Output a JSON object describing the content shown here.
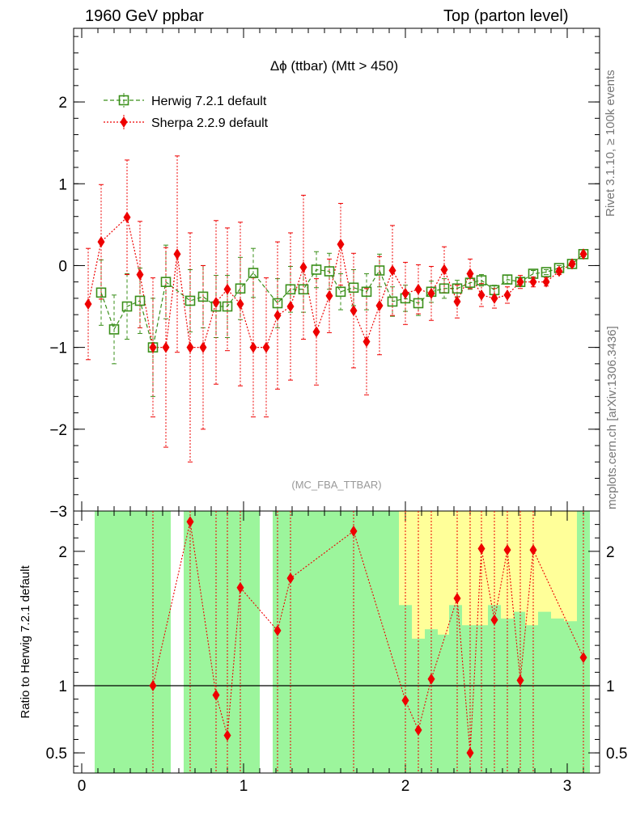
{
  "header": {
    "left": "1960 GeV ppbar",
    "right": "Top (parton level)"
  },
  "side": {
    "rivet": "Rivet 3.1.10, ≥ 100k events",
    "mcplots": "mcplots.cern.ch [arXiv:1306.3436]"
  },
  "plot": {
    "title": "Δϕ (ttbar) (Mtt > 450)",
    "watermark": "(MC_FBA_TTBAR)",
    "ratio_ylabel": "Ratio to Herwig 7.2.1 default",
    "legend_placement": "top-left"
  },
  "colors": {
    "herwig": "#3a8f1a",
    "sherpa": "#ee0000",
    "band_green": "#9cf59c",
    "band_yellow": "#ffff99"
  },
  "chart_data": [
    {
      "type": "line",
      "xlim": [
        -0.05,
        3.2
      ],
      "ylim": [
        -3,
        2.9
      ],
      "xticks": [
        0,
        1,
        2,
        3
      ],
      "yticks": [
        -3,
        -2,
        -1,
        0,
        1,
        2
      ],
      "series": [
        {
          "name": "Herwig 7.2.1 default",
          "marker": "open-square",
          "line": "dashed",
          "x": [
            0.12,
            0.2,
            0.28,
            0.36,
            0.44,
            0.52,
            0.67,
            0.75,
            0.83,
            0.9,
            0.98,
            1.06,
            1.21,
            1.29,
            1.37,
            1.45,
            1.53,
            1.6,
            1.68,
            1.76,
            1.84,
            1.92,
            2.0,
            2.08,
            2.16,
            2.24,
            2.32,
            2.4,
            2.47,
            2.55,
            2.63,
            2.71,
            2.79,
            2.87,
            2.95,
            3.03,
            3.1
          ],
          "y": [
            -0.33,
            -0.78,
            -0.5,
            -0.43,
            -1.0,
            -0.2,
            -0.43,
            -0.38,
            -0.5,
            -0.5,
            -0.28,
            -0.09,
            -0.46,
            -0.29,
            -0.29,
            -0.05,
            -0.07,
            -0.32,
            -0.27,
            -0.32,
            -0.06,
            -0.44,
            -0.4,
            -0.46,
            -0.32,
            -0.28,
            -0.28,
            -0.21,
            -0.18,
            -0.3,
            -0.17,
            -0.2,
            -0.1,
            -0.08,
            -0.03,
            0.02,
            0.14
          ],
          "err": [
            0.4,
            0.42,
            0.4,
            0.4,
            0.6,
            0.45,
            0.38,
            0.38,
            0.38,
            0.38,
            0.38,
            0.3,
            0.3,
            0.28,
            0.28,
            0.22,
            0.22,
            0.22,
            0.22,
            0.22,
            0.2,
            0.18,
            0.16,
            0.15,
            0.13,
            0.12,
            0.1,
            0.08,
            0.07,
            0.06,
            0.05,
            0.04,
            0.04,
            0.03,
            0.03,
            0.03,
            0.03
          ]
        },
        {
          "name": "Sherpa 2.2.9 default",
          "marker": "filled-diamond",
          "line": "dotted",
          "x": [
            0.04,
            0.12,
            0.28,
            0.36,
            0.44,
            0.52,
            0.59,
            0.67,
            0.75,
            0.83,
            0.9,
            0.98,
            1.06,
            1.14,
            1.21,
            1.29,
            1.37,
            1.45,
            1.53,
            1.6,
            1.68,
            1.76,
            1.84,
            1.92,
            2.0,
            2.08,
            2.16,
            2.24,
            2.32,
            2.4,
            2.47,
            2.55,
            2.63,
            2.71,
            2.79,
            2.87,
            2.95,
            3.03,
            3.1
          ],
          "y": [
            -0.47,
            0.29,
            0.59,
            -0.11,
            -1.0,
            -1.0,
            0.14,
            -1.0,
            -1.0,
            -0.45,
            -0.29,
            -0.47,
            -1.0,
            -1.0,
            -0.61,
            -0.5,
            -0.02,
            -0.81,
            -0.37,
            0.26,
            -0.55,
            -0.93,
            -0.49,
            -0.06,
            -0.34,
            -0.29,
            -0.34,
            -0.05,
            -0.44,
            -0.1,
            -0.36,
            -0.4,
            -0.36,
            -0.2,
            -0.2,
            -0.2,
            -0.07,
            0.02,
            0.14
          ],
          "err": [
            0.68,
            0.7,
            0.7,
            0.65,
            0.85,
            1.22,
            1.2,
            1.4,
            1.0,
            1.0,
            0.75,
            1.0,
            0.85,
            0.85,
            0.9,
            0.9,
            0.88,
            0.65,
            0.45,
            0.5,
            0.7,
            0.65,
            0.6,
            0.55,
            0.38,
            0.3,
            0.33,
            0.28,
            0.2,
            0.18,
            0.14,
            0.12,
            0.1,
            0.08,
            0.06,
            0.05,
            0.04,
            0.03,
            0.02
          ]
        }
      ]
    },
    {
      "type": "line",
      "ylabel": "Ratio to Herwig 7.2.1 default",
      "xlim": [
        -0.05,
        3.2
      ],
      "ylim": [
        0.35,
        2.3
      ],
      "xticks": [
        0,
        1,
        2,
        3
      ],
      "yticks": [
        0.5,
        1,
        2
      ],
      "reference": 1,
      "bands": {
        "bins": [
          0.08,
          0.16,
          0.24,
          0.32,
          0.4,
          0.48,
          0.55,
          0.63,
          0.71,
          0.79,
          0.87,
          0.95,
          1.02,
          1.1,
          1.18,
          1.26,
          1.33,
          1.41,
          1.49,
          1.57,
          1.65,
          1.73,
          1.8,
          1.88,
          1.96,
          2.04,
          2.12,
          2.2,
          2.27,
          2.35,
          2.43,
          2.51,
          2.59,
          2.67,
          2.74,
          2.82,
          2.9,
          2.98,
          3.06,
          3.14
        ],
        "green_lo": [
          0.35,
          0.35,
          0.35,
          0.35,
          0.35,
          0.35,
          null,
          0.35,
          0.35,
          0.35,
          0.35,
          0.35,
          0.35,
          null,
          0.35,
          0.35,
          0.35,
          0.35,
          0.35,
          0.35,
          0.35,
          0.35,
          0.35,
          0.35,
          0.35,
          0.35,
          0.35,
          0.35,
          0.35,
          0.35,
          0.35,
          0.35,
          0.35,
          0.35,
          0.35,
          0.35,
          0.35,
          0.35,
          0.35
        ],
        "green_hi": [
          2.3,
          2.3,
          2.3,
          2.3,
          2.3,
          2.3,
          null,
          2.3,
          2.3,
          2.3,
          2.3,
          2.3,
          2.3,
          null,
          2.3,
          2.3,
          2.3,
          2.3,
          2.3,
          2.3,
          2.3,
          2.3,
          2.3,
          2.3,
          1.6,
          1.35,
          1.42,
          1.38,
          1.6,
          1.45,
          1.45,
          1.6,
          1.5,
          1.55,
          1.45,
          1.55,
          1.5,
          1.48,
          2.3
        ],
        "yellow_lo": [
          0.35,
          0.35,
          0.35,
          0.35,
          0.35,
          0.35,
          null,
          0.35,
          0.35,
          0.35,
          0.35,
          0.35,
          0.35,
          null,
          0.35,
          0.35,
          0.35,
          0.35,
          0.35,
          0.35,
          0.35,
          0.35,
          0.35,
          0.35,
          0.35,
          0.35,
          0.35,
          0.35,
          0.35,
          0.35,
          0.35,
          0.35,
          0.35,
          0.35,
          0.35,
          0.35,
          0.35,
          0.35,
          0.35
        ],
        "yellow_hi": [
          2.3,
          2.3,
          2.3,
          2.3,
          2.3,
          2.3,
          null,
          2.3,
          2.3,
          2.3,
          2.3,
          2.3,
          2.3,
          null,
          2.3,
          2.3,
          2.3,
          2.3,
          2.3,
          2.3,
          2.3,
          2.3,
          2.3,
          2.3,
          2.3,
          2.3,
          2.3,
          2.3,
          2.3,
          2.3,
          2.3,
          2.3,
          2.3,
          2.3,
          2.3,
          2.3,
          2.3,
          2.3,
          2.3
        ]
      },
      "series": [
        {
          "name": "Sherpa 2.2.9 default",
          "marker": "filled-diamond",
          "x": [
            0.44,
            0.67,
            0.83,
            0.9,
            0.98,
            1.21,
            1.29,
            1.68,
            2.0,
            2.08,
            2.16,
            2.32,
            2.4,
            2.47,
            2.55,
            2.63,
            2.71,
            2.79,
            3.1
          ],
          "y": [
            1.0,
            2.22,
            0.93,
            0.63,
            1.73,
            1.41,
            1.8,
            2.15,
            0.89,
            0.67,
            1.05,
            1.65,
            0.5,
            2.02,
            1.49,
            2.01,
            1.04,
            2.01,
            1.21
          ]
        }
      ]
    }
  ]
}
